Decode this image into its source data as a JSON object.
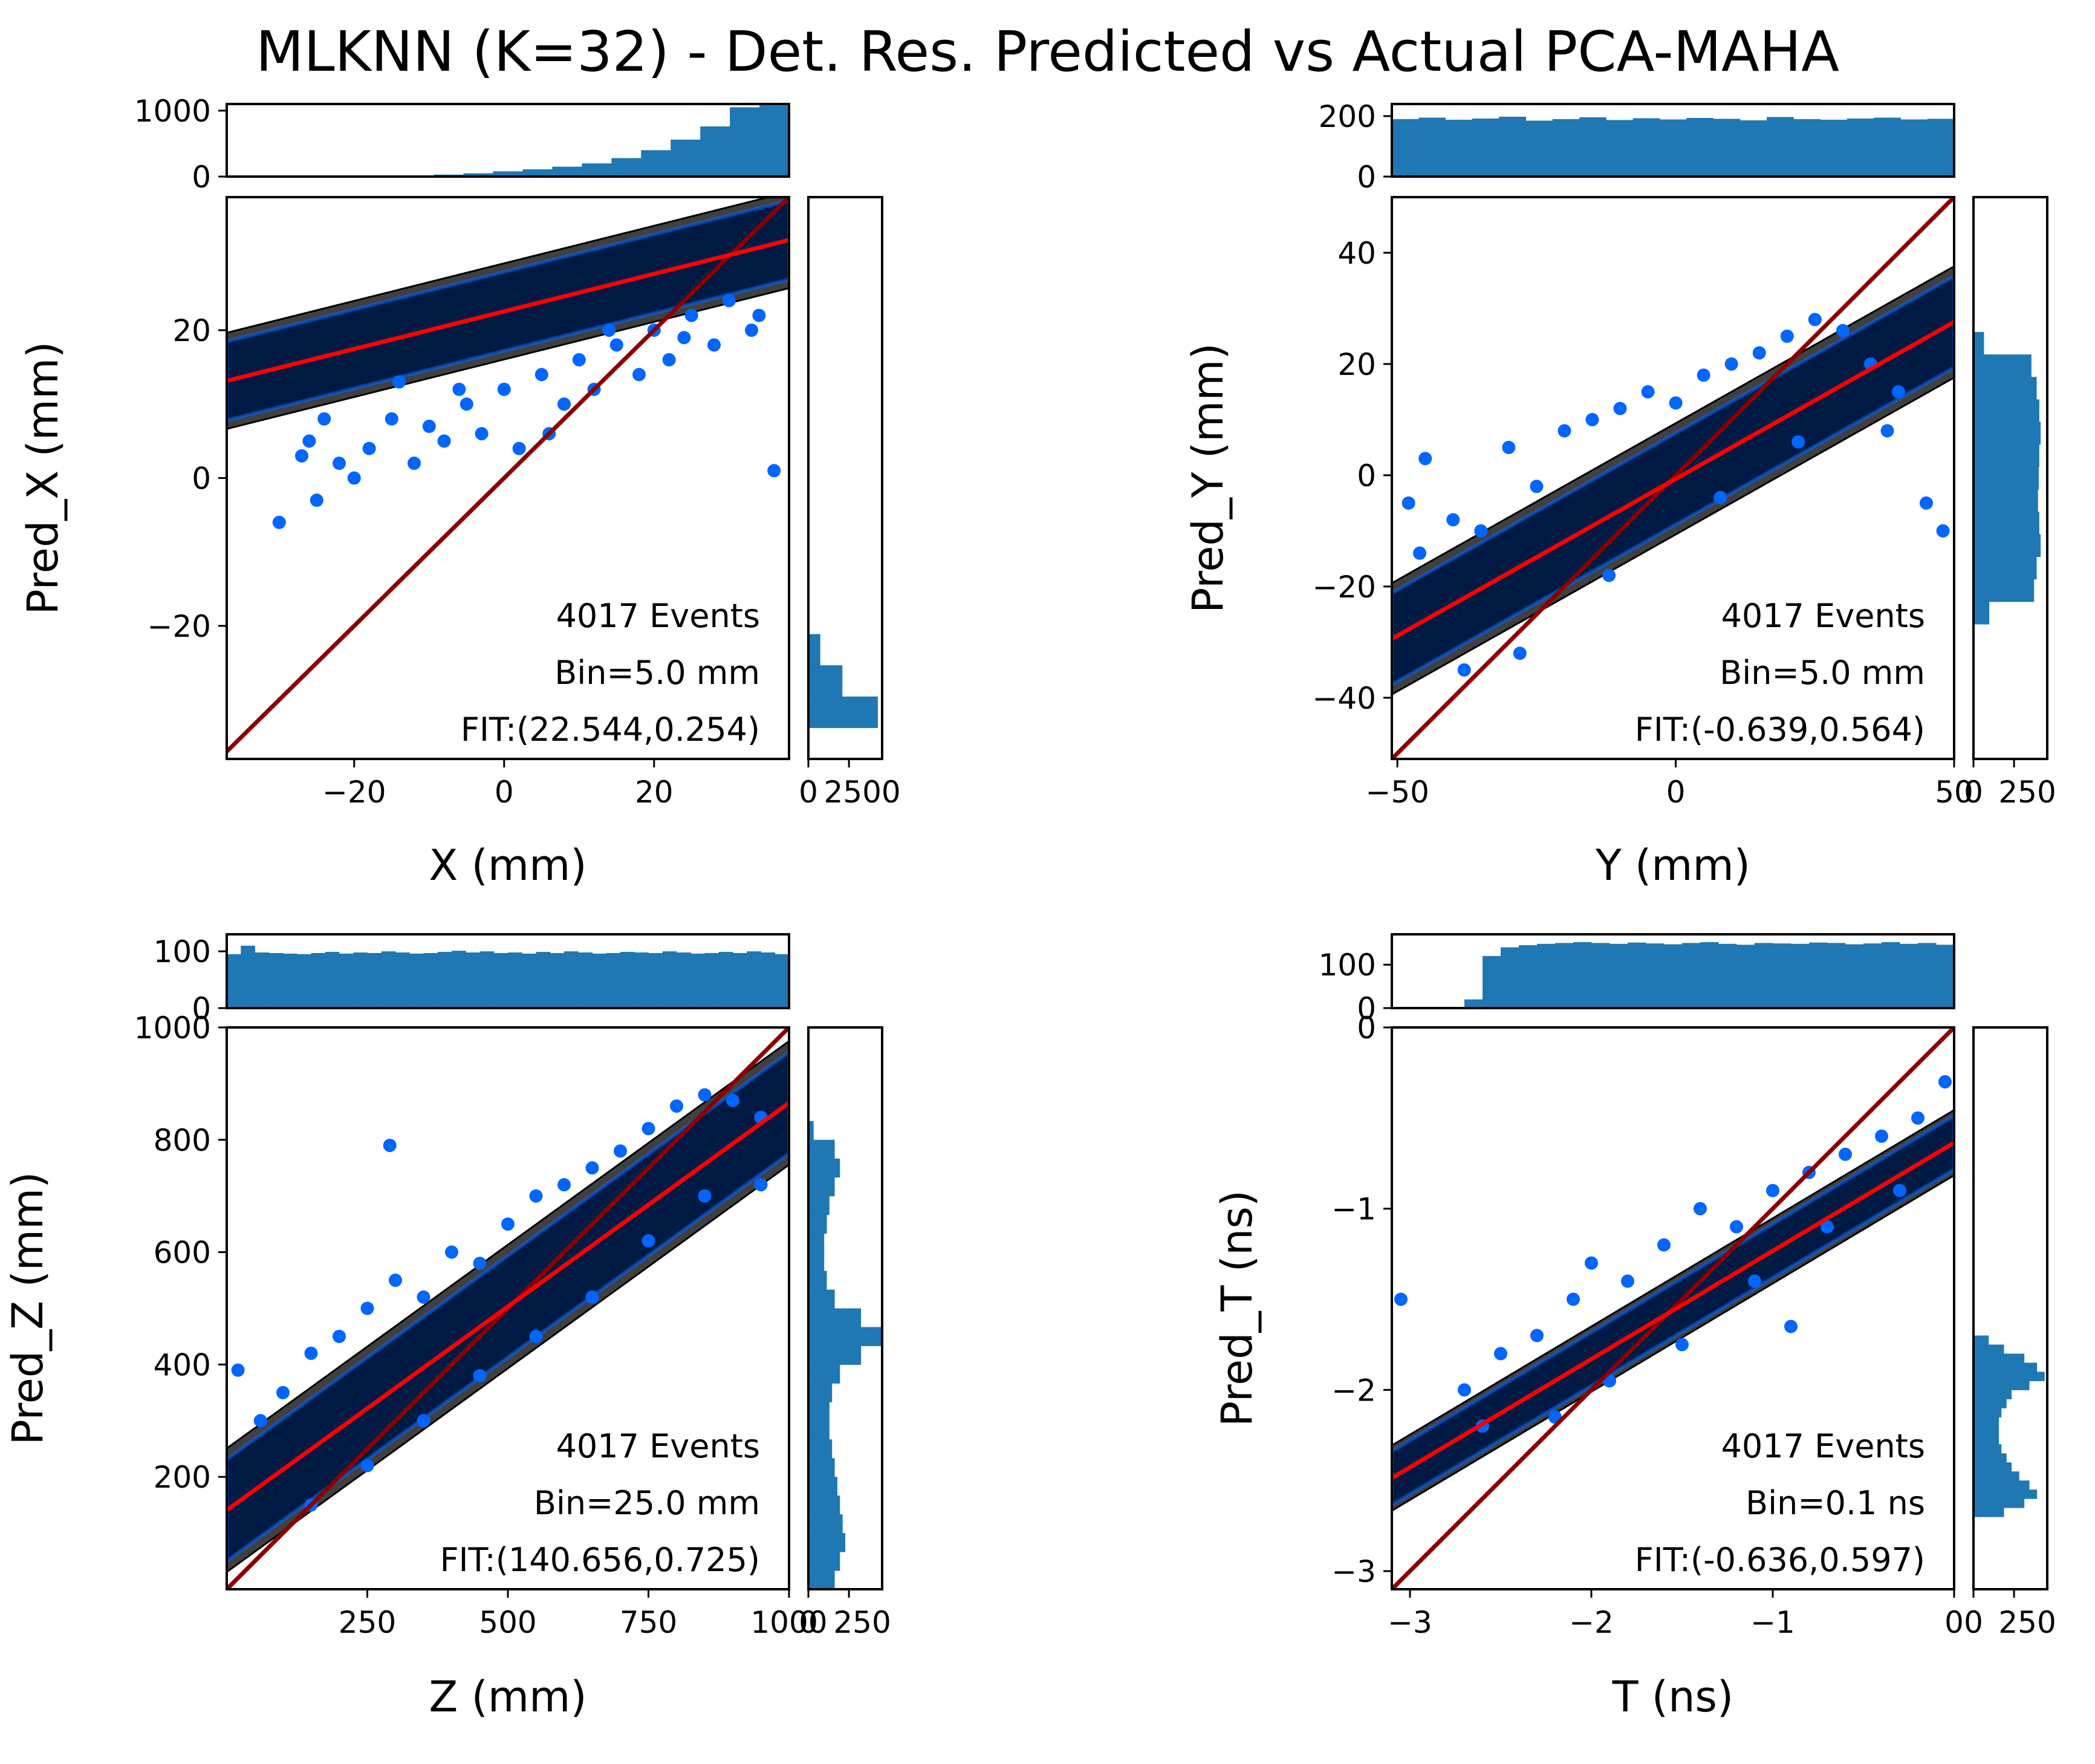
{
  "figure_title": "MLKNN (K=32) - Det. Res. Predicted vs Actual PCA-MAHA",
  "colors": {
    "scatter": "#0066ff",
    "band_fill": "#404040",
    "band_inner": "#001a44",
    "fit_line": "#ff0000",
    "identity_line": "#8b0000",
    "histogram": "#1f77b4"
  },
  "chart_data": [
    {
      "type": "scatter",
      "panel": "X",
      "xlabel": "X (mm)",
      "ylabel": "Pred_X (mm)",
      "xlim": [
        -37,
        38
      ],
      "ylim": [
        -38,
        38
      ],
      "xticks": [
        -20,
        0,
        20
      ],
      "yticks": [
        -20,
        0,
        20
      ],
      "annotations": [
        "4017 Events",
        "Bin=5.0 mm",
        "FIT:(22.544,0.254)"
      ],
      "fit": {
        "intercept": 22.544,
        "slope": 0.254
      },
      "band_halfwidth": 6.5,
      "top_hist": {
        "ylim": [
          0,
          1100
        ],
        "yticks": [
          0,
          1000
        ],
        "values": [
          0,
          0,
          0,
          0,
          0,
          5,
          15,
          30,
          50,
          80,
          110,
          150,
          200,
          280,
          400,
          560,
          760,
          1050,
          1080
        ]
      },
      "right_hist": {
        "xlim": [
          0,
          2600
        ],
        "xticks": [
          "0",
          "2500"
        ],
        "values": [
          0,
          0,
          0,
          0,
          0,
          0,
          0,
          0,
          0,
          0,
          0,
          10,
          20,
          40,
          420,
          1200,
          2450,
          0
        ]
      },
      "outliers": [
        [
          -30,
          -6
        ],
        [
          -27,
          3
        ],
        [
          -25,
          -3
        ],
        [
          -22,
          2
        ],
        [
          -20,
          0
        ],
        [
          -18,
          4
        ],
        [
          -15,
          8
        ],
        [
          -12,
          2
        ],
        [
          -10,
          7
        ],
        [
          -8,
          5
        ],
        [
          -5,
          10
        ],
        [
          -3,
          6
        ],
        [
          0,
          12
        ],
        [
          2,
          4
        ],
        [
          5,
          14
        ],
        [
          8,
          10
        ],
        [
          10,
          16
        ],
        [
          12,
          12
        ],
        [
          15,
          18
        ],
        [
          18,
          14
        ],
        [
          20,
          20
        ],
        [
          22,
          16
        ],
        [
          25,
          22
        ],
        [
          28,
          18
        ],
        [
          30,
          24
        ],
        [
          33,
          20
        ],
        [
          36,
          1
        ],
        [
          -26,
          5
        ],
        [
          -24,
          8
        ],
        [
          -14,
          13
        ],
        [
          -6,
          12
        ],
        [
          6,
          6
        ],
        [
          14,
          20
        ],
        [
          24,
          19
        ],
        [
          34,
          22
        ]
      ]
    },
    {
      "type": "scatter",
      "panel": "Y",
      "xlabel": "Y (mm)",
      "ylabel": "Pred_Y (mm)",
      "xlim": [
        -51,
        50
      ],
      "ylim": [
        -51,
        50
      ],
      "xticks": [
        -50,
        0,
        50
      ],
      "yticks": [
        -40,
        -20,
        0,
        20,
        40
      ],
      "annotations": [
        "4017 Events",
        "Bin=5.0 mm",
        "FIT:(-0.639,0.564)"
      ],
      "fit": {
        "intercept": -0.639,
        "slope": 0.564
      },
      "band_halfwidth": 10,
      "top_hist": {
        "ylim": [
          0,
          240
        ],
        "yticks": [
          0,
          200
        ],
        "values": [
          190,
          195,
          188,
          192,
          198,
          185,
          190,
          196,
          187,
          193,
          189,
          194,
          191,
          186,
          197,
          190,
          188,
          192,
          195,
          189,
          191
        ]
      },
      "right_hist": {
        "xlim": [
          0,
          280
        ],
        "xticks": [
          "0",
          "250"
        ],
        "values": [
          0,
          0,
          0,
          0,
          0,
          0,
          40,
          220,
          240,
          250,
          255,
          250,
          248,
          245,
          250,
          255,
          240,
          230,
          60,
          0,
          0,
          0,
          0,
          0,
          0
        ]
      },
      "outliers": [
        [
          -48,
          -5
        ],
        [
          -45,
          3
        ],
        [
          -40,
          -8
        ],
        [
          -35,
          -10
        ],
        [
          -30,
          5
        ],
        [
          -25,
          -2
        ],
        [
          -20,
          8
        ],
        [
          -15,
          10
        ],
        [
          -10,
          12
        ],
        [
          -5,
          15
        ],
        [
          0,
          13
        ],
        [
          5,
          18
        ],
        [
          10,
          20
        ],
        [
          15,
          22
        ],
        [
          20,
          25
        ],
        [
          25,
          28
        ],
        [
          30,
          26
        ],
        [
          35,
          20
        ],
        [
          40,
          15
        ],
        [
          45,
          -5
        ],
        [
          48,
          -10
        ],
        [
          -46,
          -14
        ],
        [
          -38,
          -35
        ],
        [
          -28,
          -32
        ],
        [
          -12,
          -18
        ],
        [
          8,
          -4
        ],
        [
          22,
          6
        ],
        [
          38,
          8
        ]
      ]
    },
    {
      "type": "scatter",
      "panel": "Z",
      "xlabel": "Z (mm)",
      "ylabel": "Pred_Z (mm)",
      "xlim": [
        0,
        1000
      ],
      "ylim": [
        0,
        1000
      ],
      "xticks": [
        250,
        500,
        750,
        1000
      ],
      "yticks": [
        200,
        400,
        600,
        800,
        1000
      ],
      "annotations": [
        "4017 Events",
        "Bin=25.0 mm",
        "FIT:(140.656,0.725)"
      ],
      "fit": {
        "intercept": 140.656,
        "slope": 0.725
      },
      "band_halfwidth": 110,
      "top_hist": {
        "ylim": [
          0,
          130
        ],
        "yticks": [
          0,
          100
        ],
        "values": [
          95,
          110,
          98,
          97,
          96,
          95,
          97,
          99,
          96,
          98,
          97,
          100,
          98,
          96,
          97,
          99,
          101,
          98,
          100,
          97,
          98,
          96,
          99,
          97,
          100,
          98,
          96,
          97,
          99,
          98,
          97,
          100,
          98,
          96,
          97,
          99,
          97,
          100,
          98,
          95
        ]
      },
      "right_hist": {
        "xlim": [
          0,
          280
        ],
        "xticks": [
          "0",
          "250"
        ],
        "values": [
          0,
          0,
          0,
          0,
          0,
          20,
          100,
          120,
          100,
          80,
          70,
          60,
          60,
          70,
          100,
          200,
          280,
          200,
          120,
          90,
          80,
          80,
          90,
          100,
          110,
          120,
          130,
          140,
          120,
          100
        ]
      },
      "outliers": [
        [
          20,
          390
        ],
        [
          60,
          300
        ],
        [
          100,
          350
        ],
        [
          150,
          420
        ],
        [
          200,
          450
        ],
        [
          250,
          500
        ],
        [
          290,
          790
        ],
        [
          300,
          550
        ],
        [
          350,
          520
        ],
        [
          400,
          600
        ],
        [
          450,
          580
        ],
        [
          500,
          650
        ],
        [
          550,
          700
        ],
        [
          600,
          720
        ],
        [
          650,
          750
        ],
        [
          700,
          780
        ],
        [
          750,
          820
        ],
        [
          800,
          860
        ],
        [
          850,
          880
        ],
        [
          900,
          870
        ],
        [
          950,
          840
        ],
        [
          150,
          150
        ],
        [
          250,
          220
        ],
        [
          350,
          300
        ],
        [
          450,
          380
        ],
        [
          550,
          450
        ],
        [
          650,
          520
        ],
        [
          750,
          620
        ],
        [
          850,
          700
        ],
        [
          950,
          720
        ]
      ]
    },
    {
      "type": "scatter",
      "panel": "T",
      "xlabel": "T (ns)",
      "ylabel": "Pred_T (ns)",
      "xlim": [
        -3.1,
        0
      ],
      "ylim": [
        -3.1,
        0
      ],
      "xticks": [
        -3,
        -2,
        -1,
        0
      ],
      "yticks": [
        -3,
        -2,
        -1,
        0
      ],
      "annotations": [
        "4017 Events",
        "Bin=0.1 ns",
        "FIT:(-0.636,0.597)"
      ],
      "fit": {
        "intercept": -0.636,
        "slope": 0.597
      },
      "band_halfwidth": 0.18,
      "top_hist": {
        "ylim": [
          0,
          170
        ],
        "yticks": [
          0,
          100
        ],
        "values": [
          0,
          0,
          0,
          0,
          20,
          120,
          140,
          145,
          148,
          150,
          152,
          150,
          148,
          151,
          149,
          147,
          150,
          152,
          148,
          146,
          150,
          149,
          148,
          151,
          150,
          147,
          149,
          152,
          148,
          150,
          146
        ]
      },
      "right_hist": {
        "xlim": [
          0,
          290
        ],
        "xticks": [
          "0",
          "250"
        ],
        "values": [
          0,
          0,
          0,
          0,
          0,
          0,
          0,
          0,
          0,
          0,
          0,
          0,
          0,
          0,
          0,
          0,
          0,
          0,
          0,
          0,
          0,
          0,
          0,
          0,
          0,
          0,
          0,
          0,
          0,
          0,
          0,
          0,
          0,
          0,
          60,
          120,
          200,
          250,
          280,
          220,
          150,
          130,
          110,
          100,
          100,
          100,
          110,
          130,
          150,
          180,
          220,
          250,
          200,
          120,
          0,
          0,
          0,
          0,
          0,
          0,
          0,
          0
        ]
      },
      "outliers": [
        [
          -3.05,
          -1.5
        ],
        [
          -2.7,
          -2.0
        ],
        [
          -2.5,
          -1.8
        ],
        [
          -2.3,
          -1.7
        ],
        [
          -2.1,
          -1.5
        ],
        [
          -2.0,
          -1.3
        ],
        [
          -1.8,
          -1.4
        ],
        [
          -1.6,
          -1.2
        ],
        [
          -1.4,
          -1.0
        ],
        [
          -1.2,
          -1.1
        ],
        [
          -1.0,
          -0.9
        ],
        [
          -0.8,
          -0.8
        ],
        [
          -0.6,
          -0.7
        ],
        [
          -0.4,
          -0.6
        ],
        [
          -0.2,
          -0.5
        ],
        [
          -0.05,
          -0.3
        ],
        [
          -2.6,
          -2.2
        ],
        [
          -2.2,
          -2.15
        ],
        [
          -1.9,
          -1.95
        ],
        [
          -1.5,
          -1.75
        ],
        [
          -1.1,
          -1.4
        ],
        [
          -0.7,
          -1.1
        ],
        [
          -0.3,
          -0.9
        ],
        [
          -0.9,
          -1.65
        ]
      ]
    }
  ]
}
